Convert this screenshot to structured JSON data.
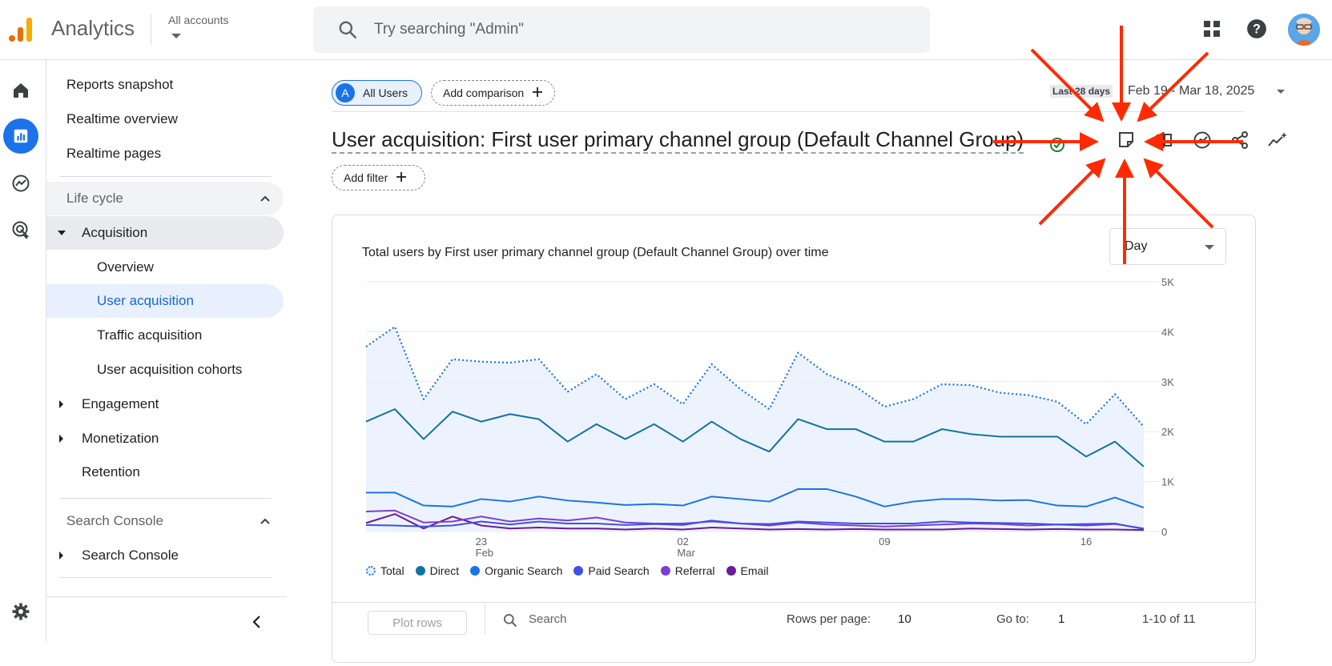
{
  "app": {
    "title": "Analytics",
    "accounts_label": "All accounts"
  },
  "search": {
    "placeholder": "Try searching \"Admin\""
  },
  "nav": {
    "reports_snapshot": "Reports snapshot",
    "realtime_overview": "Realtime overview",
    "realtime_pages": "Realtime pages",
    "life_cycle": "Life cycle",
    "acquisition": "Acquisition",
    "overview": "Overview",
    "user_acquisition": "User acquisition",
    "traffic_acquisition": "Traffic acquisition",
    "user_acquisition_cohorts": "User acquisition cohorts",
    "engagement": "Engagement",
    "monetization": "Monetization",
    "retention": "Retention",
    "search_console_section": "Search Console",
    "search_console": "Search Console"
  },
  "toolbar": {
    "segment_badge": "A",
    "segment_label": "All Users",
    "add_comparison": "Add comparison",
    "date_badge": "Last 28 days",
    "date_range": "Feb 19 - Mar 18, 2025",
    "add_filter": "Add filter"
  },
  "page": {
    "title": "User acquisition: First user primary channel group (Default Channel Group)"
  },
  "card": {
    "title": "Total users by First user primary channel group (Default Channel Group) over time",
    "granularity": "Day"
  },
  "table": {
    "plot_rows": "Plot rows",
    "search_placeholder": "Search",
    "rows_per_page_label": "Rows per page:",
    "rows_per_page_value": "10",
    "goto_label": "Go to:",
    "goto_value": "1",
    "range_label": "1-10 of 11"
  },
  "colors": {
    "total": "#1a73e8",
    "direct": "#12739f",
    "organic_search": "#1a73e8",
    "paid_search": "#3f51e0",
    "referral": "#7b3fd4",
    "email": "#6a1b9a",
    "annotation_arrow": "#ff2a00"
  },
  "chart_data": {
    "type": "line",
    "x": [
      "Feb 19",
      "Feb 20",
      "Feb 21",
      "Feb 22",
      "Feb 23",
      "Feb 24",
      "Feb 25",
      "Feb 26",
      "Feb 27",
      "Feb 28",
      "Mar 1",
      "Mar 2",
      "Mar 3",
      "Mar 4",
      "Mar 5",
      "Mar 6",
      "Mar 7",
      "Mar 8",
      "Mar 9",
      "Mar 10",
      "Mar 11",
      "Mar 12",
      "Mar 13",
      "Mar 14",
      "Mar 15",
      "Mar 16",
      "Mar 17",
      "Mar 18"
    ],
    "x_ticks": [
      {
        "label": "23",
        "sublabel": "Feb",
        "index": 4
      },
      {
        "label": "02",
        "sublabel": "Mar",
        "index": 11
      },
      {
        "label": "09",
        "sublabel": "",
        "index": 18
      },
      {
        "label": "16",
        "sublabel": "",
        "index": 25
      }
    ],
    "y_ticks": [
      "5K",
      "4K",
      "3K",
      "2K",
      "1K",
      "0"
    ],
    "ylim": [
      0,
      5000
    ],
    "series": [
      {
        "name": "Total",
        "style": "dotted",
        "values": [
          3700,
          4100,
          2650,
          3450,
          3400,
          3380,
          3450,
          2800,
          3150,
          2650,
          2950,
          2550,
          3350,
          2850,
          2450,
          3580,
          3150,
          2900,
          2500,
          2650,
          2950,
          2930,
          2780,
          2730,
          2600,
          2150,
          2750,
          2100
        ]
      },
      {
        "name": "Direct",
        "style": "solid",
        "values": [
          2200,
          2450,
          1850,
          2400,
          2200,
          2350,
          2250,
          1800,
          2150,
          1850,
          2150,
          1800,
          2200,
          1850,
          1600,
          2250,
          2050,
          2050,
          1800,
          1800,
          2050,
          1950,
          1900,
          1900,
          1900,
          1500,
          1800,
          1300
        ]
      },
      {
        "name": "Organic Search",
        "style": "solid",
        "values": [
          780,
          780,
          520,
          500,
          650,
          600,
          700,
          620,
          580,
          530,
          550,
          520,
          700,
          650,
          600,
          850,
          850,
          700,
          500,
          600,
          650,
          650,
          620,
          630,
          520,
          500,
          680,
          480
        ]
      },
      {
        "name": "Paid Search",
        "style": "solid",
        "values": [
          130,
          120,
          100,
          120,
          200,
          140,
          200,
          160,
          160,
          130,
          150,
          130,
          220,
          160,
          150,
          200,
          180,
          160,
          160,
          160,
          200,
          180,
          170,
          160,
          140,
          150,
          160,
          50
        ]
      },
      {
        "name": "Referral",
        "style": "solid",
        "values": [
          400,
          420,
          180,
          200,
          300,
          200,
          260,
          220,
          280,
          180,
          160,
          160,
          200,
          160,
          120,
          180,
          140,
          120,
          100,
          120,
          140,
          160,
          150,
          120,
          140,
          120,
          150,
          60
        ]
      },
      {
        "name": "Email",
        "style": "solid",
        "values": [
          170,
          350,
          60,
          300,
          120,
          60,
          80,
          60,
          60,
          40,
          60,
          40,
          80,
          60,
          40,
          50,
          40,
          50,
          40,
          40,
          40,
          60,
          50,
          40,
          50,
          40,
          40,
          30
        ]
      }
    ]
  }
}
